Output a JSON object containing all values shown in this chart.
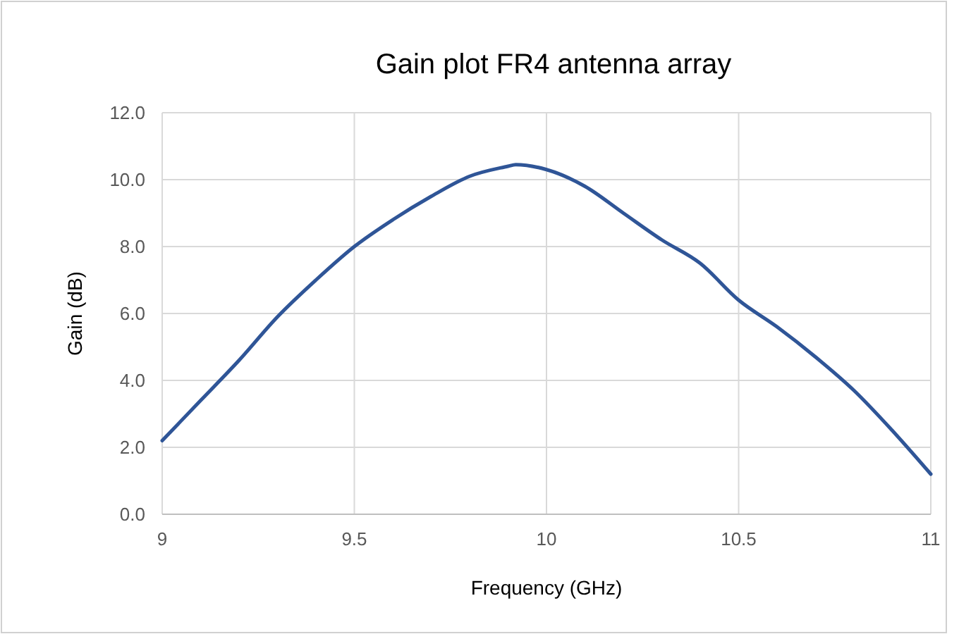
{
  "chart_data": {
    "type": "line",
    "title": "Gain plot FR4 antenna array",
    "xlabel": "Frequency (GHz)",
    "ylabel": "Gain (dB)",
    "x": [
      9,
      9.1,
      9.2,
      9.3,
      9.4,
      9.5,
      9.6,
      9.7,
      9.8,
      9.9,
      9.92,
      10,
      10.1,
      10.2,
      10.3,
      10.4,
      10.5,
      10.6,
      10.7,
      10.8,
      10.9,
      11
    ],
    "series": [
      {
        "color": "#2f5597",
        "values": [
          2.2,
          3.4,
          4.6,
          5.9,
          7.0,
          8.0,
          8.8,
          9.5,
          10.1,
          10.4,
          10.45,
          10.3,
          9.8,
          9.0,
          8.2,
          7.5,
          6.4,
          5.6,
          4.7,
          3.7,
          2.5,
          1.2
        ]
      }
    ],
    "xlim": [
      9,
      11
    ],
    "xticks": [
      9,
      9.5,
      10,
      10.5,
      11
    ],
    "ylim": [
      0,
      12
    ],
    "yticks": [
      {
        "value": 0,
        "label": "0.0"
      },
      {
        "value": 2,
        "label": "2.0"
      },
      {
        "value": 4,
        "label": "4.0"
      },
      {
        "value": 6,
        "label": "6.0"
      },
      {
        "value": 8,
        "label": "8.0"
      },
      {
        "value": 10,
        "label": "10.0"
      },
      {
        "value": 12,
        "label": "12.0"
      }
    ],
    "grid": true,
    "marker": "none",
    "line_style": "solid"
  }
}
